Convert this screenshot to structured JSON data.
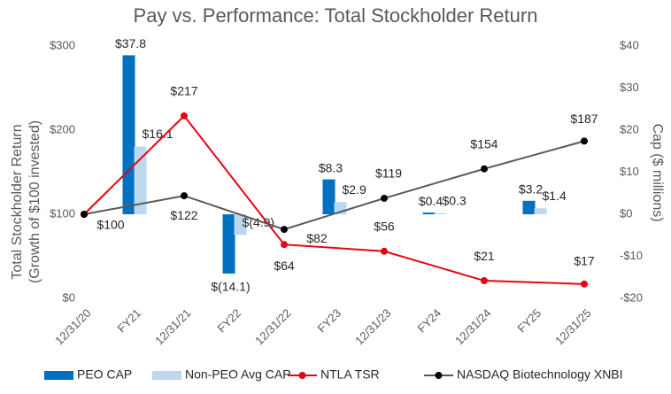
{
  "chart_data": {
    "type": "combo",
    "title": "Pay vs. Performance: Total Stockholder Return",
    "y_label": [
      "Total Stockholder Return",
      "(Growth of $100 invested)"
    ],
    "y2_label": "Cap ($ millions)",
    "categories": [
      "12/31/20",
      "FY21",
      "12/31/21",
      "FY22",
      "12/31/22",
      "FY23",
      "12/31/23",
      "FY24",
      "12/31/24",
      "FY25",
      "12/31/25"
    ],
    "ylim": [
      0,
      300
    ],
    "yticks": [
      {
        "value": 0,
        "label": "$0"
      },
      {
        "value": 100,
        "label": "$100"
      },
      {
        "value": 200,
        "label": "$200"
      },
      {
        "value": 300,
        "label": "$300"
      }
    ],
    "y2lim": [
      -20,
      40
    ],
    "y2ticks": [
      {
        "value": -20,
        "label": "-$20"
      },
      {
        "value": -10,
        "label": "-$10"
      },
      {
        "value": 0,
        "label": "$0"
      },
      {
        "value": 10,
        "label": "$10"
      },
      {
        "value": 20,
        "label": "$20"
      },
      {
        "value": 30,
        "label": "$30"
      },
      {
        "value": 40,
        "label": "$40"
      }
    ],
    "series": [
      {
        "name": "PEO CAP",
        "kind": "bar",
        "axis": "y2",
        "color": "#0070c0",
        "x": [
          "FY21",
          "FY22",
          "FY23",
          "FY24",
          "FY25"
        ],
        "values": [
          37.8,
          -14.1,
          8.3,
          0.4,
          3.2
        ],
        "value_labels": [
          "$37.8",
          "$(14.1)",
          "$8.3",
          "$0.4",
          "$3.2"
        ]
      },
      {
        "name": "Non-PEO Avg CAP",
        "kind": "bar",
        "axis": "y2",
        "color": "#bdd7ee",
        "x": [
          "FY21",
          "FY22",
          "FY23",
          "FY24",
          "FY25"
        ],
        "values": [
          16.1,
          -4.9,
          2.9,
          0.3,
          1.4
        ],
        "value_labels": [
          "$16.1",
          "$(4.9)",
          "$2.9",
          "$0.3",
          "$1.4"
        ]
      },
      {
        "name": "NTLA TSR",
        "kind": "line",
        "color": "#e30613",
        "marker_color": "#e30613",
        "x": [
          "12/31/20",
          "12/31/21",
          "12/31/22",
          "12/31/23",
          "12/31/24",
          "12/31/25"
        ],
        "values": [
          100,
          217,
          64,
          56,
          21,
          17
        ],
        "value_labels": [
          null,
          "$217",
          "$64",
          "$56",
          "$21",
          "$17"
        ]
      },
      {
        "name": "NASDAQ Biotechnology XNBI",
        "kind": "line",
        "color": "#595959",
        "marker_color": "#000000",
        "x": [
          "12/31/20",
          "12/31/21",
          "12/31/22",
          "12/31/23",
          "12/31/24",
          "12/31/25"
        ],
        "values": [
          100,
          122,
          82,
          119,
          154,
          187
        ],
        "value_labels": [
          "$100",
          "$122",
          "$82",
          "$119",
          "$154",
          "$187"
        ]
      }
    ]
  }
}
